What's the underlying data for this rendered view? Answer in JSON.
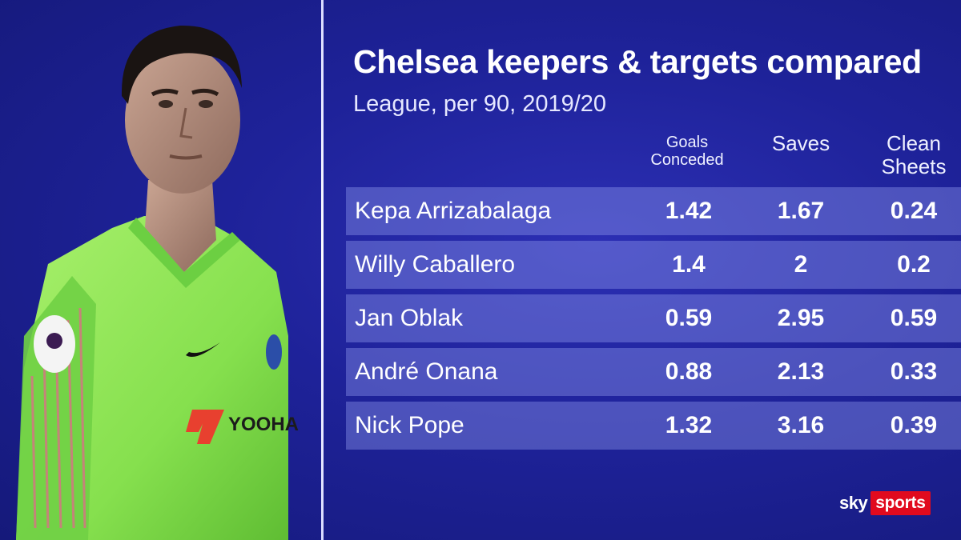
{
  "chart_data": {
    "type": "table",
    "title": "Chelsea keepers & targets compared",
    "subtitle": "League, per 90, 2019/20",
    "columns": [
      "Goals Conceded",
      "Saves",
      "Clean Sheets"
    ],
    "rows": [
      {
        "name": "Kepa Arrizabalaga",
        "values": [
          "1.42",
          "1.67",
          "0.24"
        ]
      },
      {
        "name": "Willy Caballero",
        "values": [
          "1.4",
          "2",
          "0.2"
        ]
      },
      {
        "name": "Jan Oblak",
        "values": [
          "0.59",
          "2.95",
          "0.59"
        ]
      },
      {
        "name": "André Onana",
        "values": [
          "0.88",
          "2.13",
          "0.33"
        ]
      },
      {
        "name": "Nick Pope",
        "values": [
          "1.32",
          "3.16",
          "0.39"
        ]
      }
    ]
  },
  "branding": {
    "sky": "sky",
    "sports": "sports",
    "accent_color": "#e10a1e"
  },
  "colors": {
    "background": "#1e2299",
    "row_band": "#6f76d6",
    "kit_green": "#8fe65a"
  },
  "photo": {
    "icon": "goalkeeper-portrait-icon"
  }
}
